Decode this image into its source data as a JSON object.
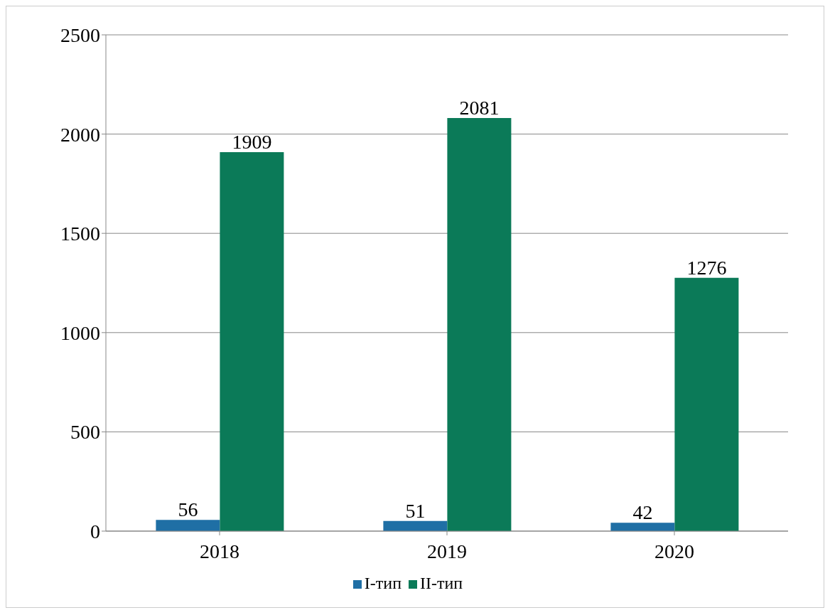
{
  "chart_data": {
    "type": "bar",
    "categories": [
      "2018",
      "2019",
      "2020"
    ],
    "series": [
      {
        "name": "I-тип",
        "color": "#1f6fa5",
        "values": [
          56,
          51,
          42
        ]
      },
      {
        "name": "II-тип",
        "color": "#0b7a58",
        "values": [
          1909,
          2081,
          1276
        ]
      }
    ],
    "ylim": [
      0,
      2500
    ],
    "yticks": [
      0,
      500,
      1000,
      1500,
      2000,
      2500
    ],
    "grid": "y",
    "legend": "bottom",
    "data_labels": true
  }
}
